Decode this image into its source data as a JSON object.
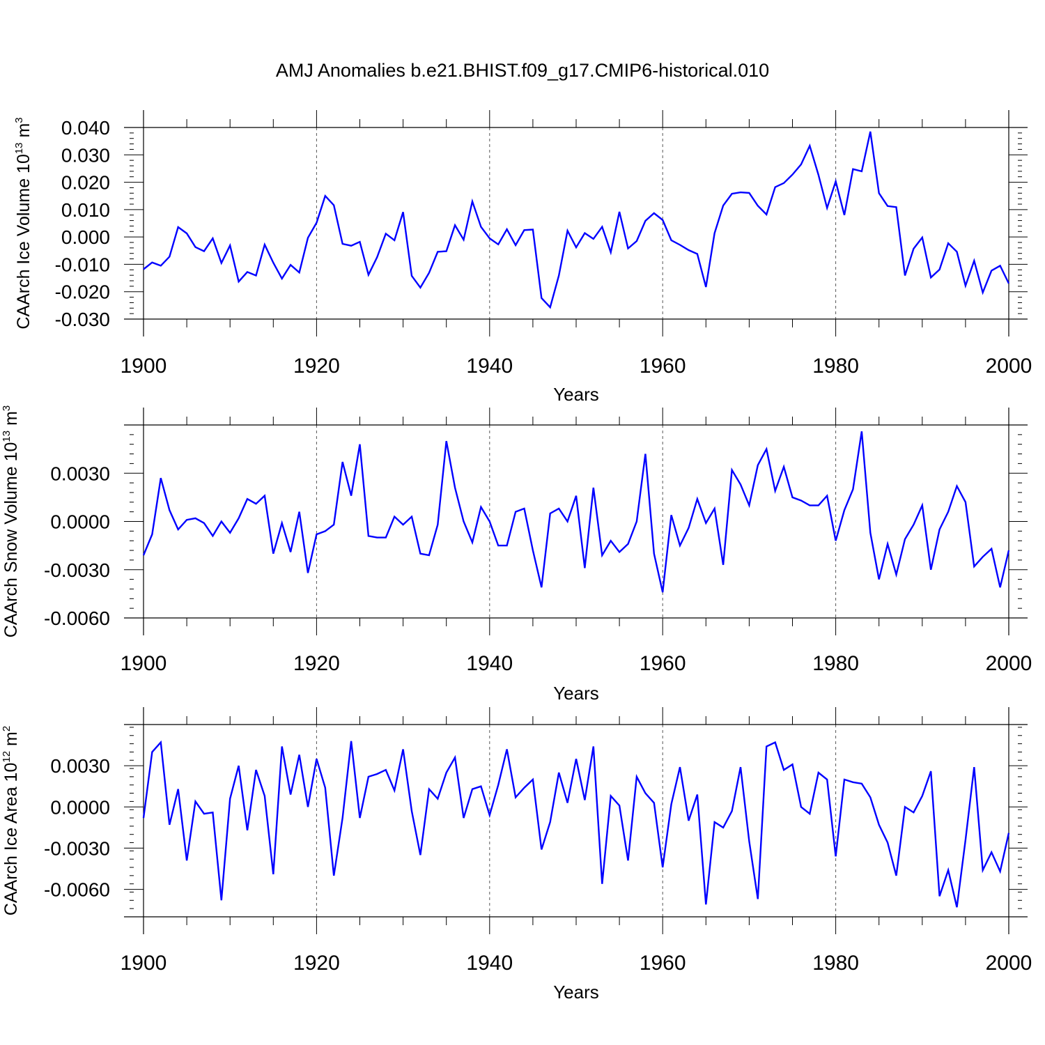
{
  "title": "AMJ Anomalies b.e21.BHIST.f09_g17.CMIP6-historical.010",
  "line_color": "#0000ff",
  "chart_data": [
    {
      "type": "line",
      "ylabel": "CAArch Ice Volume 10",
      "ylabel_exp": "13",
      "ylabel_unit": " m",
      "ylabel_unit_exp": "3",
      "xlabel": "Years",
      "xlim": [
        1900,
        2000
      ],
      "ylim": [
        -0.03,
        0.04
      ],
      "xticks": [
        1900,
        1920,
        1940,
        1960,
        1980,
        2000
      ],
      "xtick_labels": [
        "1900",
        "1920",
        "1940",
        "1960",
        "1980",
        "2000"
      ],
      "yticks": [
        -0.03,
        -0.02,
        -0.01,
        0.0,
        0.01,
        0.02,
        0.03,
        0.04
      ],
      "ytick_labels": [
        "-0.030",
        "-0.020",
        "-0.010",
        "0.000",
        "0.010",
        "0.020",
        "0.030",
        "0.040"
      ],
      "zero_line": 0.04,
      "start_year": 1900,
      "values": [
        -0.0118,
        -0.0093,
        -0.0105,
        -0.0072,
        0.0036,
        0.0013,
        -0.0037,
        -0.0052,
        -0.0005,
        -0.0095,
        -0.0031,
        -0.0163,
        -0.0128,
        -0.0141,
        -0.0028,
        -0.0094,
        -0.0152,
        -0.0102,
        -0.013,
        -0.0003,
        0.0052,
        0.015,
        0.0116,
        -0.0025,
        -0.0032,
        -0.0018,
        -0.0138,
        -0.0074,
        0.0012,
        -0.0012,
        0.0091,
        -0.0142,
        -0.0185,
        -0.0131,
        -0.0054,
        -0.0052,
        0.0043,
        -0.001,
        0.013,
        0.0037,
        -0.0005,
        -0.0027,
        0.0028,
        -0.003,
        0.0025,
        0.0027,
        -0.0223,
        -0.0257,
        -0.0141,
        0.0023,
        -0.0038,
        0.0014,
        -0.0007,
        0.0037,
        -0.0056,
        0.0092,
        -0.0042,
        -0.0015,
        0.0059,
        0.0087,
        0.0062,
        -0.0012,
        -0.0029,
        -0.0048,
        -0.0062,
        -0.0183,
        0.0014,
        0.0115,
        0.0158,
        0.0163,
        0.0161,
        0.0114,
        0.0082,
        0.0182,
        0.0197,
        0.0228,
        0.0265,
        0.0333,
        0.0227,
        0.0106,
        0.0203,
        0.008,
        0.0248,
        0.024,
        0.0385,
        0.016,
        0.0113,
        0.0109,
        -0.0141,
        -0.0043,
        -0.0002,
        -0.0148,
        -0.0119,
        -0.0023,
        -0.0054,
        -0.0178,
        -0.0087,
        -0.0203,
        -0.0123,
        -0.0105,
        -0.017
      ]
    },
    {
      "type": "line",
      "ylabel": "CAArch Snow Volume 10",
      "ylabel_exp": "13",
      "ylabel_unit": " m",
      "ylabel_unit_exp": "3",
      "xlabel": "Years",
      "xlim": [
        1900,
        2000
      ],
      "ylim": [
        -0.006,
        0.006
      ],
      "xticks": [
        1900,
        1920,
        1940,
        1960,
        1980,
        2000
      ],
      "xtick_labels": [
        "1900",
        "1920",
        "1940",
        "1960",
        "1980",
        "2000"
      ],
      "yticks": [
        -0.006,
        -0.003,
        0.0,
        0.003
      ],
      "ytick_labels": [
        "-0.0060",
        "-0.0030",
        "0.0000",
        "0.0030"
      ],
      "start_year": 1900,
      "values": [
        -0.0021,
        -0.0008,
        0.0027,
        0.0007,
        -0.0005,
        0.0001,
        0.0002,
        -0.0001,
        -0.0009,
        0.0,
        -0.0007,
        0.0002,
        0.0014,
        0.0011,
        0.0016,
        -0.002,
        -0.0001,
        -0.0019,
        0.0006,
        -0.0032,
        -0.0008,
        -0.0006,
        -0.0002,
        0.0037,
        0.0016,
        0.0048,
        -0.0009,
        -0.001,
        -0.001,
        0.0003,
        -0.0002,
        0.0003,
        -0.002,
        -0.0021,
        -0.0002,
        0.005,
        0.0021,
        0.0,
        -0.0013,
        0.0009,
        0.0,
        -0.0015,
        -0.0015,
        0.0006,
        0.0008,
        -0.0018,
        -0.0041,
        0.0005,
        0.0008,
        0.0,
        0.0016,
        -0.0029,
        0.0021,
        -0.0021,
        -0.0012,
        -0.0019,
        -0.0014,
        0.0,
        0.0042,
        -0.002,
        -0.0044,
        0.0004,
        -0.0015,
        -0.0004,
        0.0014,
        -0.0001,
        0.0008,
        -0.0027,
        0.0032,
        0.0023,
        0.001,
        0.0035,
        0.0045,
        0.0019,
        0.0034,
        0.0015,
        0.0013,
        0.001,
        0.001,
        0.0016,
        -0.0012,
        0.0007,
        0.002,
        0.0056,
        -0.0007,
        -0.0036,
        -0.0014,
        -0.0033,
        -0.0011,
        -0.0002,
        0.001,
        -0.003,
        -0.0005,
        0.0006,
        0.0022,
        0.0012,
        -0.0028,
        -0.0022,
        -0.0017,
        -0.0041,
        -0.0018
      ]
    },
    {
      "type": "line",
      "ylabel": "CAArch Ice Area 10",
      "ylabel_exp": "12",
      "ylabel_unit": " m",
      "ylabel_unit_exp": "2",
      "xlabel": "Years",
      "xlim": [
        1900,
        2000
      ],
      "ylim": [
        -0.008,
        0.006
      ],
      "xticks": [
        1900,
        1920,
        1940,
        1960,
        1980,
        2000
      ],
      "xtick_labels": [
        "1900",
        "1920",
        "1940",
        "1960",
        "1980",
        "2000"
      ],
      "yticks": [
        -0.006,
        -0.003,
        0.0,
        0.003
      ],
      "ytick_labels": [
        "-0.0060",
        "-0.0030",
        "0.0000",
        "0.0030"
      ],
      "start_year": 1900,
      "values": [
        -0.0008,
        0.004,
        0.0047,
        -0.0013,
        0.0013,
        -0.0039,
        0.0004,
        -0.0005,
        -0.0004,
        -0.0068,
        0.0006,
        0.003,
        -0.0017,
        0.0027,
        0.0008,
        -0.0049,
        0.0044,
        0.0009,
        0.0038,
        0.0,
        0.0035,
        0.0014,
        -0.005,
        -0.0008,
        0.0048,
        -0.0008,
        0.0022,
        0.0024,
        0.0027,
        0.0012,
        0.0042,
        -0.0003,
        -0.0035,
        0.0013,
        0.0006,
        0.0025,
        0.0036,
        -0.0008,
        0.0013,
        0.0015,
        -0.0006,
        0.0016,
        0.0042,
        0.0007,
        0.0014,
        0.002,
        -0.0031,
        -0.0011,
        0.0025,
        0.0003,
        0.0035,
        0.0005,
        0.0044,
        -0.0056,
        0.0008,
        0.0001,
        -0.0039,
        0.0022,
        0.001,
        0.0003,
        -0.0044,
        0.0002,
        0.0029,
        -0.001,
        0.0009,
        -0.0071,
        -0.0011,
        -0.0015,
        -0.0003,
        0.0029,
        -0.0025,
        -0.0067,
        0.0044,
        0.0047,
        0.0027,
        0.0031,
        0.0,
        -0.0005,
        0.0025,
        0.002,
        -0.0036,
        0.002,
        0.0018,
        0.0017,
        0.0007,
        -0.0013,
        -0.0026,
        -0.005,
        0.0,
        -0.0004,
        0.0008,
        0.0026,
        -0.0065,
        -0.0046,
        -0.0073,
        -0.0024,
        0.0029,
        -0.0046,
        -0.0033,
        -0.0047,
        -0.0019
      ]
    }
  ]
}
